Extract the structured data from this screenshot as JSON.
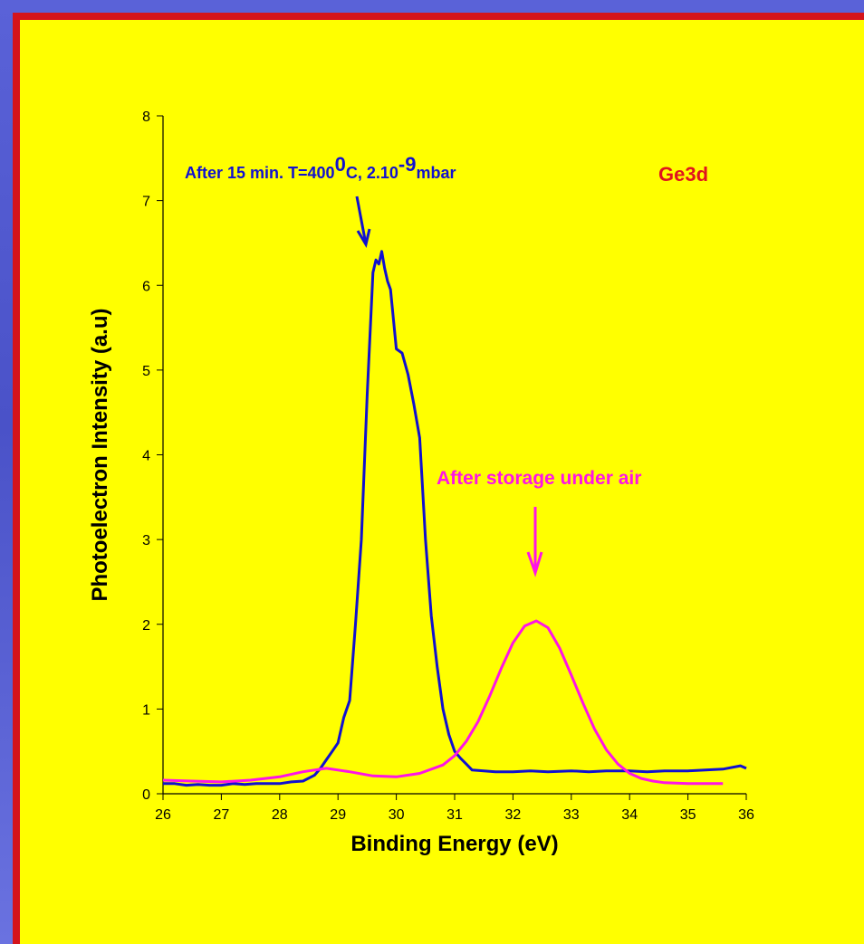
{
  "colors": {
    "panel": "#ffff00",
    "panel_border": "#d4141b",
    "series_vacuum": "#1010d0",
    "series_air": "#ff14e6",
    "label_element": "#e0141e"
  },
  "chart_data": {
    "type": "line",
    "title": "",
    "xlabel": "Binding Energy (eV)",
    "ylabel": "Photoelectron Intensity (a.u)",
    "xlim": [
      26,
      36
    ],
    "ylim": [
      0,
      8
    ],
    "xticks": [
      "26",
      "27",
      "28",
      "29",
      "30",
      "31",
      "32",
      "33",
      "34",
      "35",
      "36"
    ],
    "yticks": [
      "0",
      "1",
      "2",
      "3",
      "4",
      "5",
      "6",
      "7",
      "8"
    ],
    "grid": false,
    "legend": "none",
    "series": [
      {
        "color": "#1010d0",
        "x": [
          26.0,
          26.2,
          26.4,
          26.6,
          26.8,
          27.0,
          27.2,
          27.4,
          27.6,
          27.8,
          28.0,
          28.2,
          28.4,
          28.6,
          28.7,
          28.8,
          28.9,
          29.0,
          29.1,
          29.2,
          29.3,
          29.4,
          29.5,
          29.6,
          29.65,
          29.7,
          29.75,
          29.8,
          29.85,
          29.9,
          30.0,
          30.1,
          30.2,
          30.3,
          30.4,
          30.5,
          30.6,
          30.7,
          30.8,
          30.9,
          31.0,
          31.1,
          31.2,
          31.3,
          31.5,
          31.7,
          32.0,
          32.3,
          32.6,
          33.0,
          33.3,
          33.6,
          34.0,
          34.3,
          34.6,
          35.0,
          35.3,
          35.6,
          35.9,
          36.0
        ],
        "y": [
          0.12,
          0.12,
          0.1,
          0.11,
          0.1,
          0.1,
          0.12,
          0.11,
          0.12,
          0.12,
          0.12,
          0.14,
          0.15,
          0.22,
          0.3,
          0.4,
          0.5,
          0.6,
          0.9,
          1.1,
          2.0,
          3.0,
          4.7,
          6.15,
          6.3,
          6.25,
          6.4,
          6.2,
          6.05,
          5.95,
          5.25,
          5.2,
          4.95,
          4.6,
          4.2,
          3.0,
          2.1,
          1.5,
          1.0,
          0.7,
          0.5,
          0.42,
          0.35,
          0.28,
          0.27,
          0.26,
          0.26,
          0.27,
          0.26,
          0.27,
          0.26,
          0.27,
          0.27,
          0.26,
          0.27,
          0.27,
          0.28,
          0.29,
          0.33,
          0.3
        ]
      },
      {
        "color": "#ff14e6",
        "x": [
          26.0,
          26.5,
          27.0,
          27.5,
          28.0,
          28.4,
          28.8,
          29.2,
          29.6,
          30.0,
          30.4,
          30.8,
          31.0,
          31.2,
          31.4,
          31.6,
          31.8,
          32.0,
          32.2,
          32.4,
          32.6,
          32.8,
          33.0,
          33.2,
          33.4,
          33.6,
          33.8,
          34.0,
          34.2,
          34.4,
          34.6,
          35.0,
          35.6
        ],
        "y": [
          0.16,
          0.15,
          0.14,
          0.16,
          0.2,
          0.26,
          0.3,
          0.26,
          0.21,
          0.2,
          0.24,
          0.34,
          0.45,
          0.62,
          0.85,
          1.15,
          1.48,
          1.78,
          1.98,
          2.04,
          1.96,
          1.72,
          1.4,
          1.07,
          0.76,
          0.52,
          0.35,
          0.24,
          0.18,
          0.15,
          0.13,
          0.12,
          0.12
        ]
      }
    ],
    "annotations": {
      "vacuum_text": "After 15 min. T=400",
      "vacuum_sup1": "0",
      "vacuum_mid": "C, 2.10",
      "vacuum_sup2": "-9",
      "vacuum_end": "mbar",
      "air_text": "After storage under air",
      "element_text": "Ge3d"
    }
  }
}
